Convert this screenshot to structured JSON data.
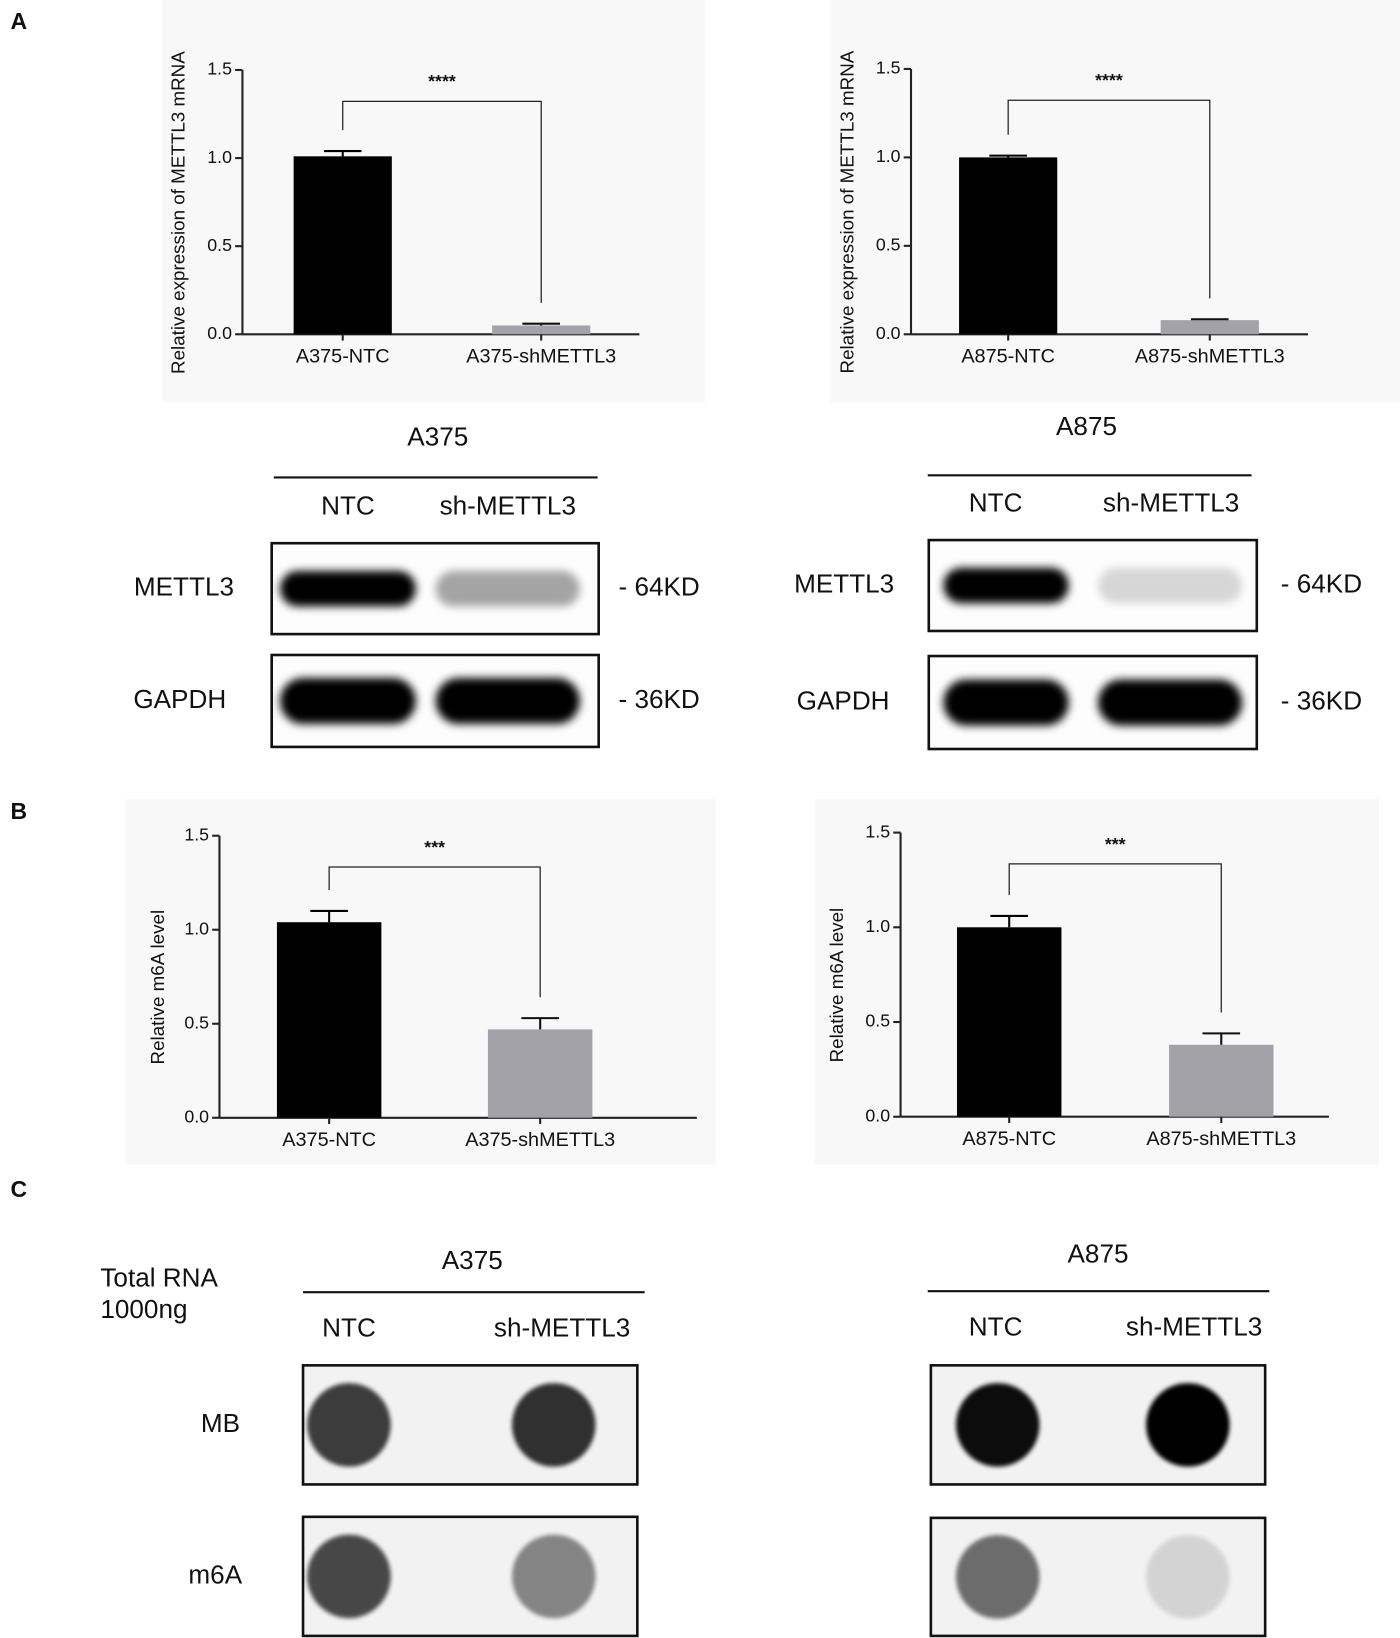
{
  "panel_labels": [
    "A",
    "B",
    "C"
  ],
  "chart_data": [
    {
      "type": "bar",
      "y_label": "Relative expression of METTL3 mRNA",
      "categories": [
        "A375-NTC",
        "A375-shMETTL3"
      ],
      "values": [
        1.01,
        0.05
      ],
      "errors": [
        0.03,
        0.01
      ],
      "colors": [
        "#000000",
        "#a2a2a8"
      ],
      "ylim": [
        0,
        1.5
      ],
      "yticks": [
        {
          "value": 0,
          "label": "0.0"
        },
        0.5,
        {
          "value": 1,
          "label": "1.0"
        },
        1.5
      ],
      "annotation": "****"
    },
    {
      "type": "bar",
      "y_label": "Relative expression of METTL3 mRNA",
      "categories": [
        "A875-NTC",
        "A875-shMETTL3"
      ],
      "values": [
        1.0,
        0.08
      ],
      "errors": [
        0.01,
        0.005
      ],
      "colors": [
        "#000000",
        "#a2a2a8"
      ],
      "ylim": [
        0,
        1.5
      ],
      "yticks": [
        {
          "value": 0,
          "label": "0.0"
        },
        0.5,
        {
          "value": 1,
          "label": "1.0"
        },
        1.5
      ],
      "annotation": "****"
    },
    {
      "type": "bar",
      "y_label": "Relative m6A level",
      "categories": [
        "A375-NTC",
        "A375-shMETTL3"
      ],
      "values": [
        1.04,
        0.47
      ],
      "errors": [
        0.06,
        0.06
      ],
      "colors": [
        "#000000",
        "#a2a2a8"
      ],
      "ylim": [
        0,
        1.5
      ],
      "yticks": [
        {
          "value": 0,
          "label": "0.0"
        },
        0.5,
        {
          "value": 1,
          "label": "1.0"
        },
        1.5
      ],
      "annotation": "***"
    },
    {
      "type": "bar",
      "y_label": "Relative m6A level",
      "categories": [
        "A875-NTC",
        "A875-shMETTL3"
      ],
      "values": [
        1.0,
        0.38
      ],
      "errors": [
        0.06,
        0.06
      ],
      "colors": [
        "#000000",
        "#a2a2a8"
      ],
      "ylim": [
        0,
        1.5
      ],
      "yticks": [
        {
          "value": 0,
          "label": "0.0"
        },
        0.5,
        {
          "value": 1,
          "label": "1.0"
        },
        1.5
      ],
      "annotation": "***"
    }
  ],
  "western_blots": [
    {
      "title": "A375",
      "lanes": [
        "NTC",
        "sh-METTL3"
      ],
      "rows": [
        {
          "label": "METTL3",
          "size": "- 64KD"
        },
        {
          "label": "GAPDH",
          "size": "- 36KD"
        }
      ]
    },
    {
      "title": "A875",
      "lanes": [
        "NTC",
        "sh-METTL3"
      ],
      "rows": [
        {
          "label": "METTL3",
          "size": "- 64KD"
        },
        {
          "label": "GAPDH",
          "size": "- 36KD"
        }
      ]
    }
  ],
  "dot_blots": {
    "sample_note": [
      "Total RNA",
      "1000ng"
    ],
    "blots": [
      {
        "title": "A375",
        "lanes": [
          "NTC",
          "sh-METTL3"
        ],
        "rows": [
          "MB",
          "m6A"
        ]
      },
      {
        "title": "A875",
        "lanes": [
          "NTC",
          "sh-METTL3"
        ],
        "rows": [
          "MB",
          "m6A"
        ]
      }
    ]
  }
}
